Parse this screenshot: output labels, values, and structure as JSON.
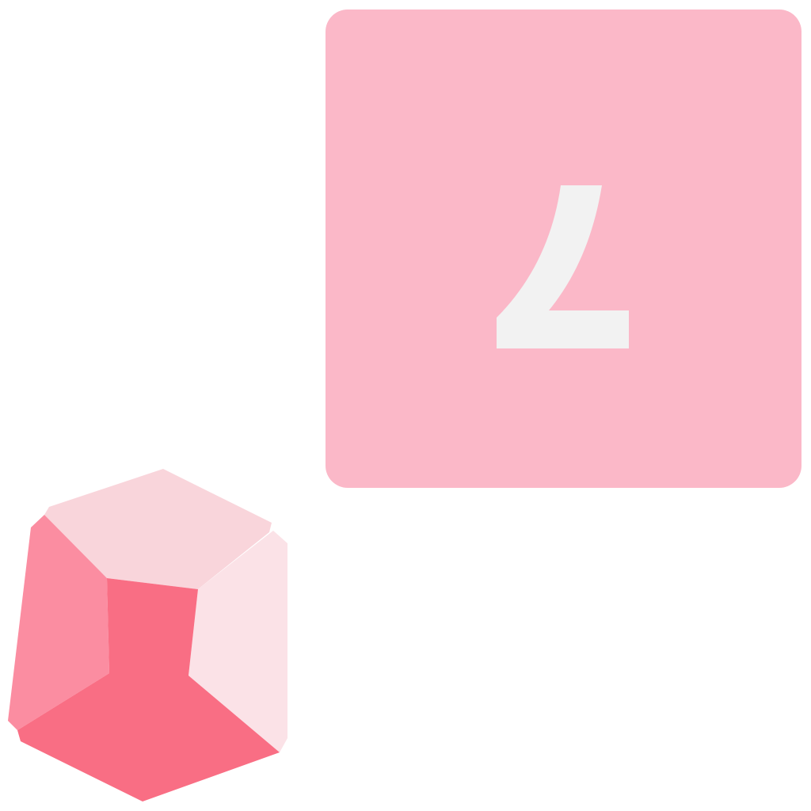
{
  "die": {
    "face_value": "7",
    "face_color": "#fbb8c8",
    "digit_color": "#f2f2f2",
    "orientation": "upside-down"
  },
  "gem": {
    "icon": "d10-gem-icon",
    "colors": {
      "top": "#f9d5db",
      "right": "#fbe2e7",
      "left": "#fb8da1",
      "front": "#f96e84"
    }
  }
}
